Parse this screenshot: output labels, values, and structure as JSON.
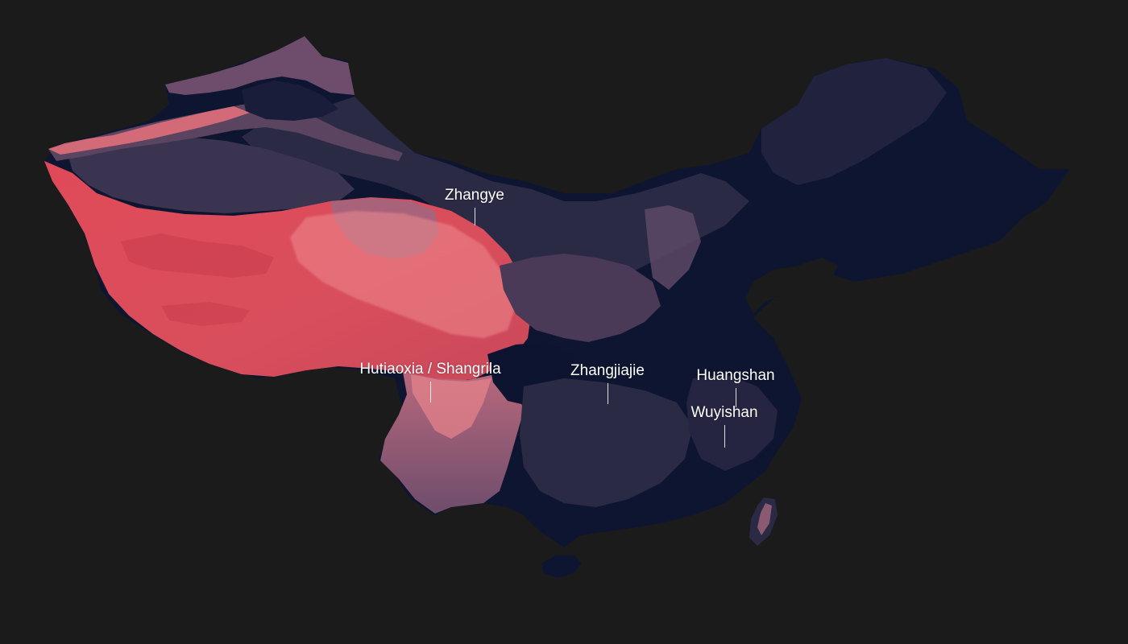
{
  "map": {
    "colors": {
      "background": "#1b1b1b",
      "lowland": "#0e1530",
      "low_hills": "#2b2a45",
      "mid_hills": "#4a3a58",
      "uplands": "#6e4d6c",
      "highlands": "#a8627a",
      "high_plateau": "#d8505e",
      "peaks": "#ef8a8f",
      "label": "#ffffff"
    },
    "places": [
      {
        "name": "Zhangye"
      },
      {
        "name": "Hutiaoxia / Shangrila"
      },
      {
        "name": "Zhangjiajie"
      },
      {
        "name": "Huangshan"
      },
      {
        "name": "Wuyishan"
      }
    ]
  }
}
